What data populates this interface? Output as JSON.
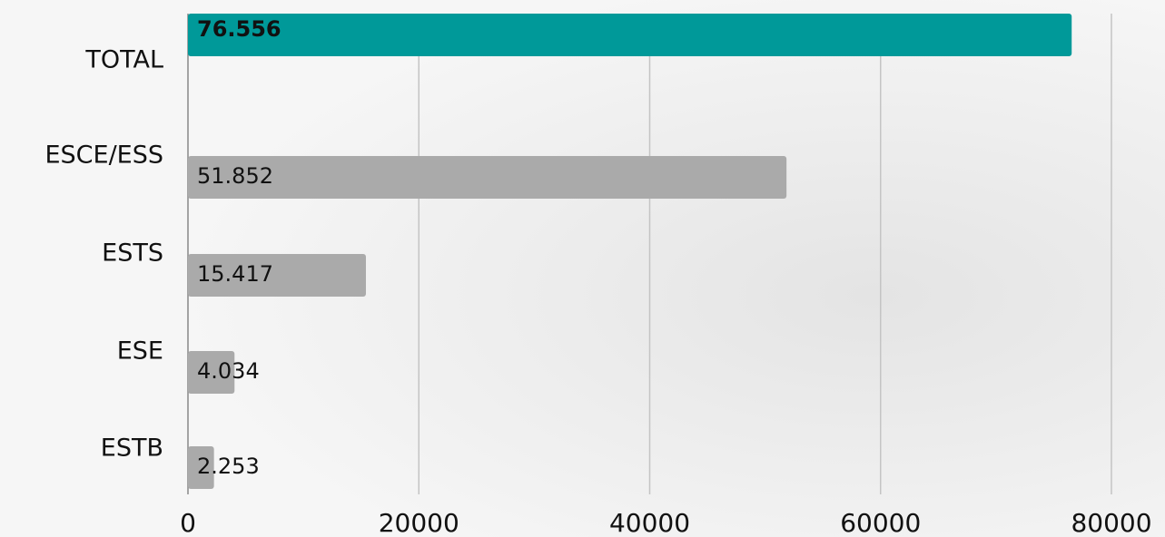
{
  "chart_data": {
    "type": "bar",
    "orientation": "horizontal",
    "categories": [
      "TOTAL",
      "ESCE/ESS",
      "ESTS",
      "ESE",
      "ESTB"
    ],
    "values": [
      76556,
      51852,
      15417,
      4034,
      2253
    ],
    "value_labels": [
      "76.556",
      "51.852",
      "15.417",
      "4.034",
      "2.253"
    ],
    "colors": [
      "#009999",
      "#aaaaaa",
      "#aaaaaa",
      "#aaaaaa",
      "#aaaaaa"
    ],
    "xlim": [
      0,
      80000
    ],
    "xticks": [
      0,
      20000,
      40000,
      60000,
      80000
    ],
    "grid": true
  }
}
